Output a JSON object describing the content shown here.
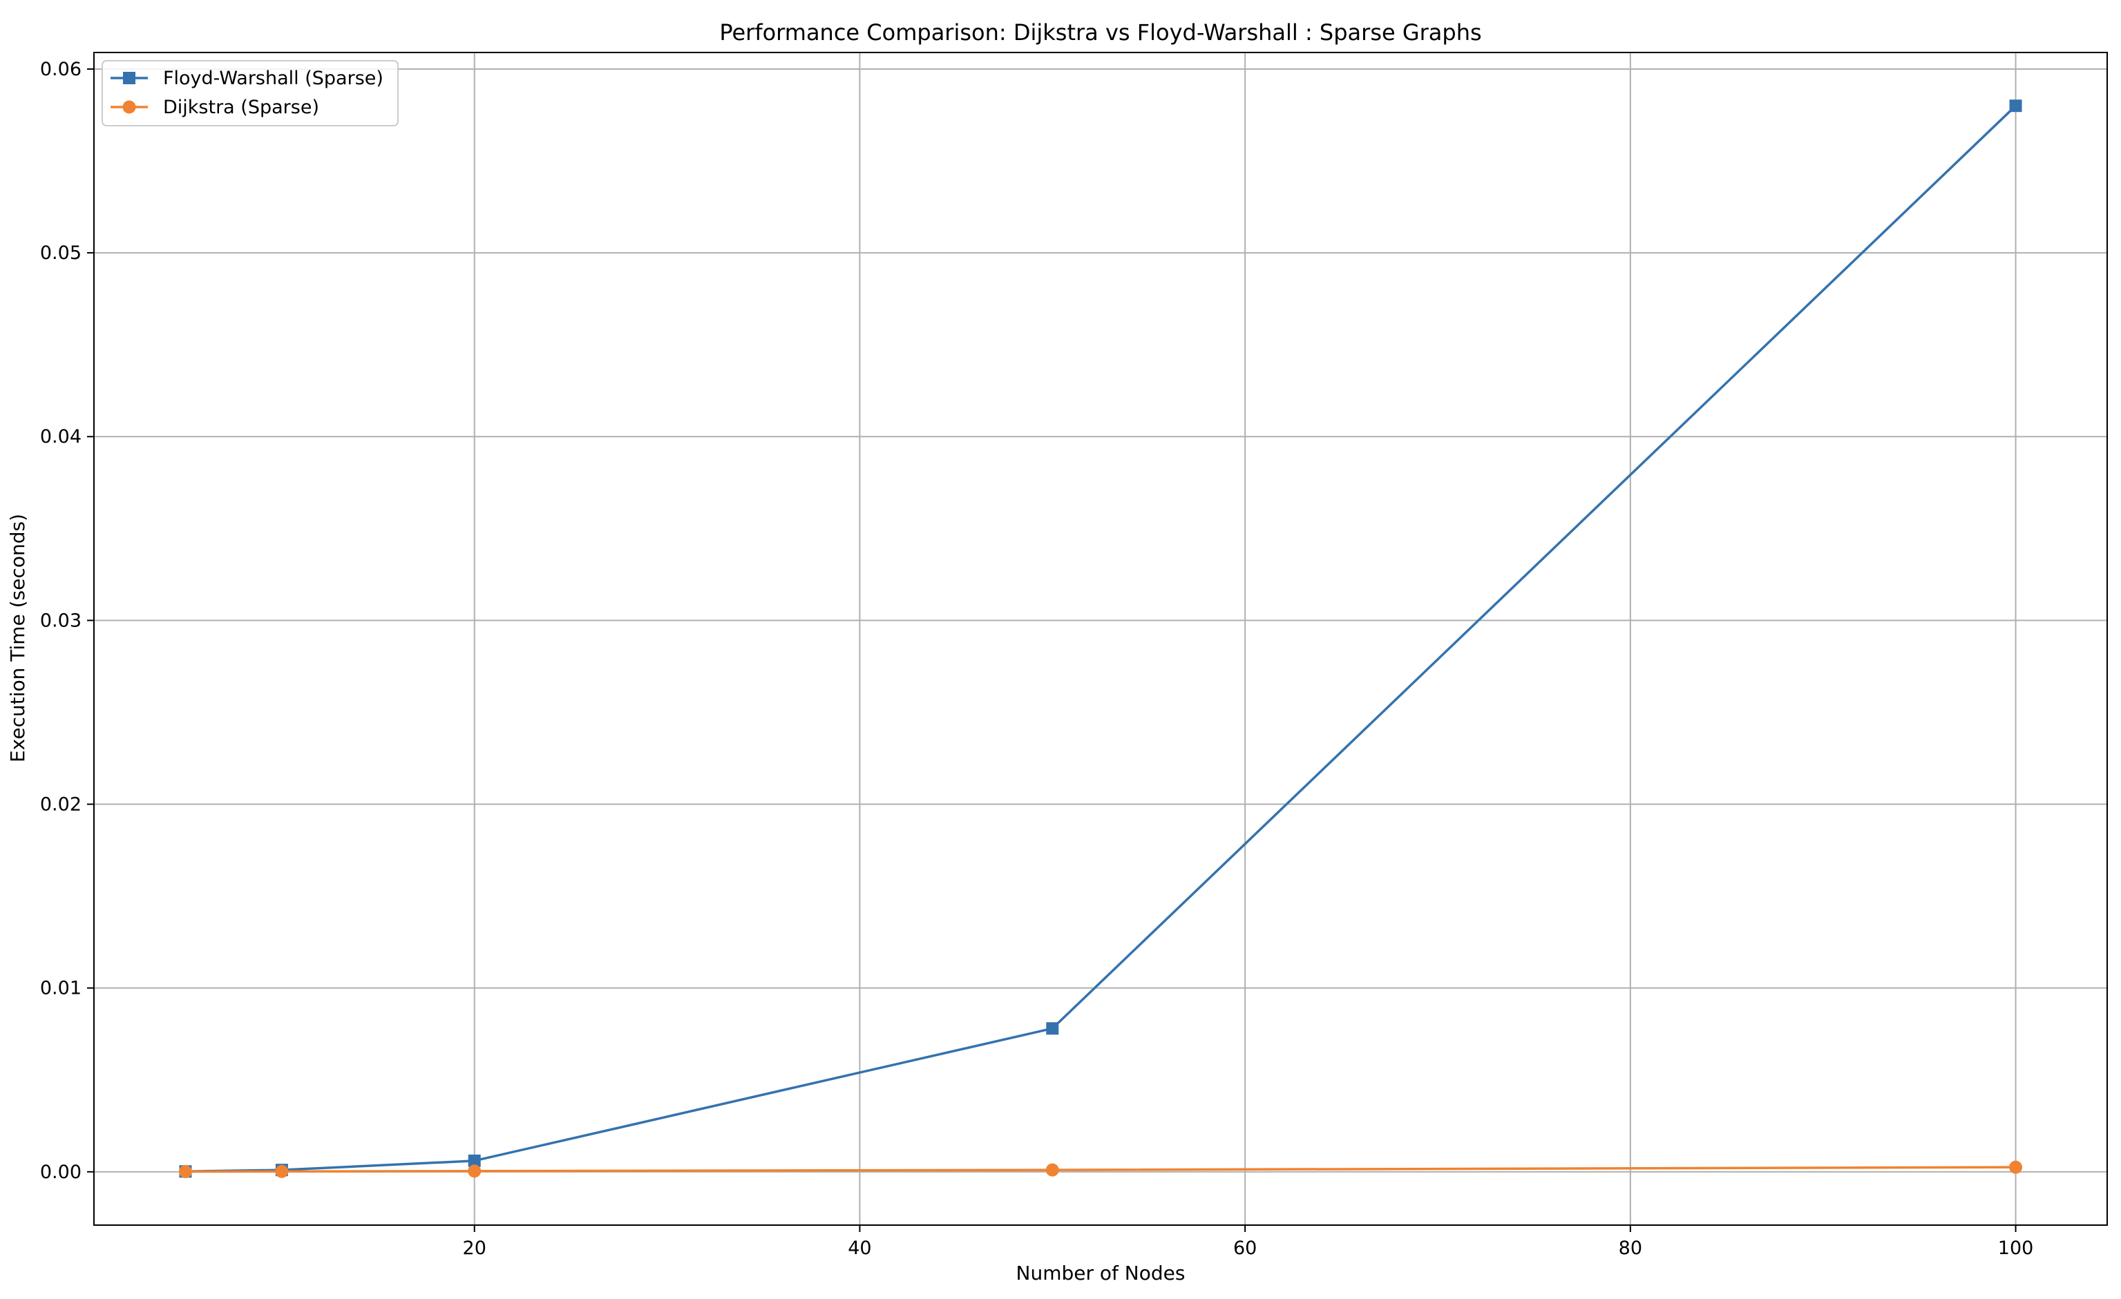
{
  "chart_data": {
    "type": "line",
    "title": "Performance Comparison: Dijkstra vs Floyd-Warshall : Sparse Graphs",
    "xlabel": "Number of Nodes",
    "ylabel": "Execution Time (seconds)",
    "xlim": [
      0.25,
      104.75
    ],
    "ylim": [
      -0.0029,
      0.0609
    ],
    "xticks": [
      20,
      40,
      60,
      80,
      100
    ],
    "xtick_labels": [
      "20",
      "40",
      "60",
      "80",
      "100"
    ],
    "yticks": [
      0.0,
      0.01,
      0.02,
      0.03,
      0.04,
      0.05,
      0.06
    ],
    "ytick_labels": [
      "0.00",
      "0.01",
      "0.02",
      "0.03",
      "0.04",
      "0.05",
      "0.06"
    ],
    "grid": true,
    "legend_position": "upper left",
    "series": [
      {
        "name": "Floyd-Warshall (Sparse)",
        "marker": "square",
        "color": "#3472ae",
        "x": [
          5,
          10,
          20,
          50,
          100
        ],
        "y": [
          2e-05,
          0.0001,
          0.0006,
          0.0078,
          0.058
        ]
      },
      {
        "name": "Dijkstra (Sparse)",
        "marker": "circle",
        "color": "#f08331",
        "x": [
          5,
          10,
          20,
          50,
          100
        ],
        "y": [
          1e-05,
          2e-05,
          4e-05,
          0.0001,
          0.00025
        ]
      }
    ]
  }
}
